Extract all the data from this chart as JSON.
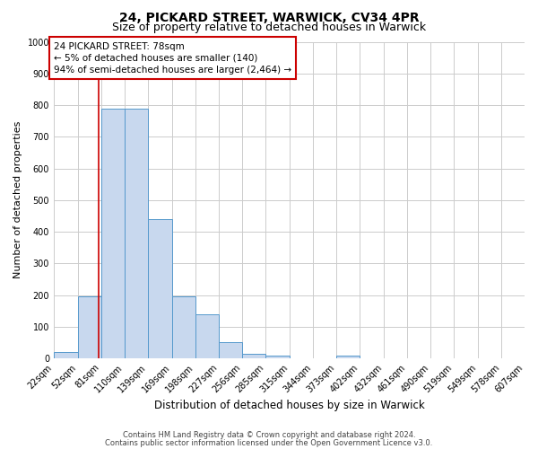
{
  "title": "24, PICKARD STREET, WARWICK, CV34 4PR",
  "subtitle": "Size of property relative to detached houses in Warwick",
  "xlabel": "Distribution of detached houses by size in Warwick",
  "ylabel": "Number of detached properties",
  "bin_edges": [
    22,
    52,
    81,
    110,
    139,
    169,
    198,
    227,
    256,
    285,
    315,
    344,
    373,
    402,
    432,
    461,
    490,
    519,
    549,
    578,
    607
  ],
  "bin_counts": [
    20,
    195,
    790,
    790,
    440,
    195,
    140,
    50,
    13,
    10,
    0,
    0,
    10,
    0,
    0,
    0,
    0,
    0,
    0,
    0
  ],
  "bar_facecolor": "#c8d8ee",
  "bar_edgecolor": "#5599cc",
  "grid_color": "#cccccc",
  "vline_x": 78,
  "vline_color": "#cc0000",
  "annotation_title": "24 PICKARD STREET: 78sqm",
  "annotation_line1": "← 5% of detached houses are smaller (140)",
  "annotation_line2": "94% of semi-detached houses are larger (2,464) →",
  "annotation_box_facecolor": "#ffffff",
  "annotation_box_edgecolor": "#cc0000",
  "tick_labels": [
    "22sqm",
    "52sqm",
    "81sqm",
    "110sqm",
    "139sqm",
    "169sqm",
    "198sqm",
    "227sqm",
    "256sqm",
    "285sqm",
    "315sqm",
    "344sqm",
    "373sqm",
    "402sqm",
    "432sqm",
    "461sqm",
    "490sqm",
    "519sqm",
    "549sqm",
    "578sqm",
    "607sqm"
  ],
  "yticks": [
    0,
    100,
    200,
    300,
    400,
    500,
    600,
    700,
    800,
    900,
    1000
  ],
  "ylim": [
    0,
    1000
  ],
  "footer1": "Contains HM Land Registry data © Crown copyright and database right 2024.",
  "footer2": "Contains public sector information licensed under the Open Government Licence v3.0.",
  "background_color": "#ffffff",
  "title_fontsize": 10,
  "subtitle_fontsize": 9,
  "xlabel_fontsize": 8.5,
  "ylabel_fontsize": 8,
  "tick_fontsize": 7,
  "footer_fontsize": 6
}
